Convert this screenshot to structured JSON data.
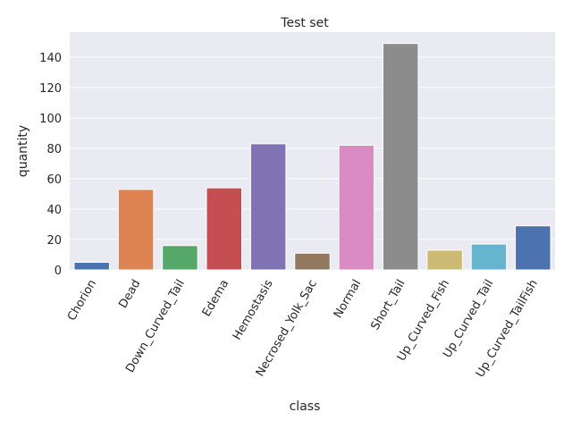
{
  "chart_data": {
    "type": "bar",
    "title": "Test set",
    "xlabel": "class",
    "ylabel": "quantity",
    "categories": [
      "Chorion",
      "Dead",
      "Down_Curved_Tail",
      "Edema",
      "Hemostasis",
      "Necrosed_Yolk_Sac",
      "Normal",
      "Short_Tail",
      "Up_Curved_Fish",
      "Up_Curved_Tail",
      "Up_Curved_TailFish"
    ],
    "values": [
      5,
      53,
      16,
      54,
      83,
      11,
      82,
      149,
      13,
      17,
      29
    ],
    "colors": [
      "#4c72b0",
      "#dd8452",
      "#55a868",
      "#c44e52",
      "#8172b3",
      "#937860",
      "#da8bc3",
      "#8c8c8c",
      "#ccb974",
      "#64b5cd",
      "#4c72b0"
    ],
    "yticks": [
      0,
      20,
      40,
      60,
      80,
      100,
      120,
      140
    ],
    "ylim": [
      0,
      156.45
    ],
    "grid": true,
    "background": "#eaeaf2"
  }
}
